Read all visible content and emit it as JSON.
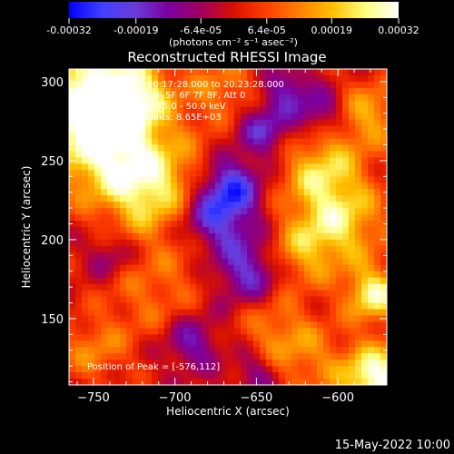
{
  "chart_data": {
    "type": "heatmap",
    "title": "Reconstructed RHESSI Image",
    "xlabel": "Heliocentric X (arcsec)",
    "ylabel": "Heliocentric Y (arcsec)",
    "xlim": [
      -765,
      -570
    ],
    "ylim": [
      108,
      308
    ],
    "xticks": [
      -750,
      -700,
      -650,
      -600
    ],
    "xtick_labels": [
      "−750",
      "−700",
      "−650",
      "−600"
    ],
    "yticks": [
      150,
      200,
      250,
      300
    ],
    "ytick_labels": [
      "150",
      "200",
      "250",
      "300"
    ],
    "colorbar": {
      "range": [
        -0.00032,
        0.00032
      ],
      "ticks": [
        -0.00032,
        -0.00019,
        -6.4e-05,
        6.4e-05,
        0.00019,
        0.00032
      ],
      "tick_labels": [
        "-0.00032",
        "-0.00019",
        "-6.4e-05",
        "6.4e-05",
        "0.00019",
        "0.00032"
      ],
      "unit_label": "(photons cm⁻² s⁻¹ asec⁻²)",
      "colors": [
        "#0000ff",
        "#4040ff",
        "#6a3cd8",
        "#7a00a0",
        "#a00060",
        "#d81000",
        "#ff4000",
        "#ff8000",
        "#ffc000",
        "#ffff80",
        "#ffffff"
      ]
    },
    "annotations": [
      "22-Oct-2011 20:17:28.000 to 20:23:28.000",
      "Detectors: 3F 4F 5F 6F 7F 8F, Att 0",
      "Energy Range: 25.0 - 50.0 keV",
      "Clean     Total counts: 8.65E+03",
      "Position of Peak = [-576,112]"
    ],
    "hotspots": [
      {
        "x": -755,
        "y": 290,
        "v": 0.32,
        "r": 30
      },
      {
        "x": -735,
        "y": 250,
        "v": 0.2,
        "r": 22
      },
      {
        "x": -715,
        "y": 225,
        "v": 0.15,
        "r": 18
      },
      {
        "x": -695,
        "y": 240,
        "v": 0.08,
        "r": 20
      },
      {
        "x": -715,
        "y": 165,
        "v": 0.1,
        "r": 20
      },
      {
        "x": -690,
        "y": 190,
        "v": 0.05,
        "r": 15
      },
      {
        "x": -610,
        "y": 245,
        "v": 0.19,
        "r": 18
      },
      {
        "x": -600,
        "y": 210,
        "v": 0.22,
        "r": 20
      },
      {
        "x": -625,
        "y": 190,
        "v": 0.12,
        "r": 15
      },
      {
        "x": -640,
        "y": 145,
        "v": 0.1,
        "r": 15
      },
      {
        "x": -620,
        "y": 125,
        "v": 0.12,
        "r": 18
      },
      {
        "x": -576,
        "y": 112,
        "v": 0.32,
        "r": 15
      },
      {
        "x": -578,
        "y": 165,
        "v": 0.26,
        "r": 12
      },
      {
        "x": -580,
        "y": 280,
        "v": 0.16,
        "r": 15
      },
      {
        "x": -750,
        "y": 130,
        "v": 0.12,
        "r": 15
      },
      {
        "x": -670,
        "y": 295,
        "v": 0.12,
        "r": 15
      },
      {
        "x": -725,
        "y": 290,
        "v": 0.15,
        "r": 15
      },
      {
        "x": -675,
        "y": 215,
        "v": -0.24,
        "r": 16
      },
      {
        "x": -665,
        "y": 235,
        "v": -0.2,
        "r": 12
      },
      {
        "x": -655,
        "y": 180,
        "v": -0.19,
        "r": 14
      },
      {
        "x": -645,
        "y": 270,
        "v": -0.18,
        "r": 12
      },
      {
        "x": -630,
        "y": 295,
        "v": -0.15,
        "r": 10
      },
      {
        "x": -610,
        "y": 280,
        "v": -0.15,
        "r": 10
      },
      {
        "x": -690,
        "y": 135,
        "v": -0.15,
        "r": 12
      },
      {
        "x": -650,
        "y": 115,
        "v": -0.12,
        "r": 10
      },
      {
        "x": -740,
        "y": 190,
        "v": -0.1,
        "r": 10
      }
    ]
  },
  "footer": {
    "date": "15-May-2022 10:00"
  }
}
